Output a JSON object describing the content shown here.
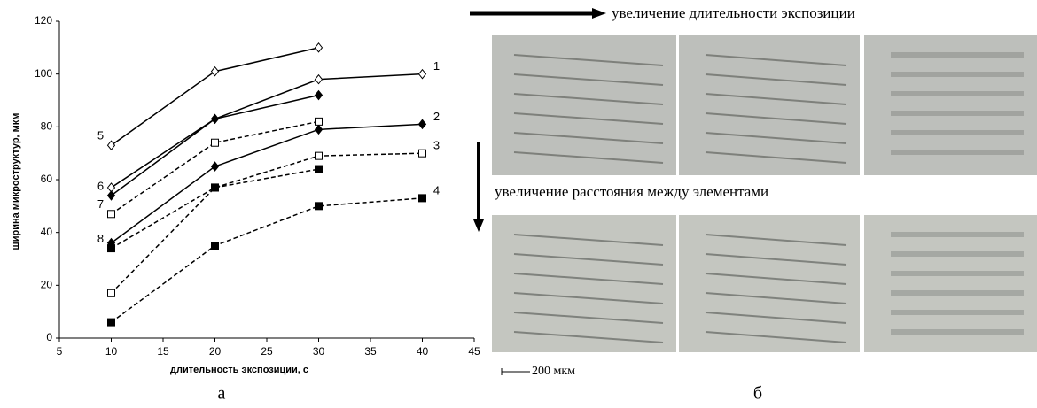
{
  "chart_data": {
    "type": "line",
    "x_label": "длительность экспозиции, с",
    "y_label": "ширина микроструктур, мкм",
    "x": [
      10,
      20,
      30,
      40
    ],
    "xlim": [
      5,
      45
    ],
    "xticks": [
      5,
      10,
      15,
      20,
      25,
      30,
      35,
      40,
      45
    ],
    "ylim": [
      0,
      120
    ],
    "yticks": [
      0,
      20,
      40,
      60,
      80,
      100,
      120
    ],
    "series": [
      {
        "name": "1",
        "color": "#000000",
        "marker": "diamond-open",
        "dashed": false,
        "values": [
          57,
          83,
          98,
          100
        ]
      },
      {
        "name": "2",
        "color": "#000000",
        "marker": "diamond",
        "dashed": false,
        "values": [
          36,
          65,
          79,
          81
        ]
      },
      {
        "name": "3",
        "color": "#000000",
        "marker": "square-open",
        "dashed": true,
        "values": [
          17,
          57,
          69,
          70
        ]
      },
      {
        "name": "4",
        "color": "#000000",
        "marker": "square",
        "dashed": true,
        "values": [
          6,
          35,
          50,
          53
        ]
      },
      {
        "name": "5",
        "color": "#000000",
        "marker": "diamond-open",
        "dashed": false,
        "values": [
          73,
          101,
          110,
          null
        ]
      },
      {
        "name": "6",
        "color": "#000000",
        "marker": "diamond",
        "dashed": false,
        "values": [
          54,
          83,
          92,
          null
        ]
      },
      {
        "name": "7",
        "color": "#000000",
        "marker": "square-open",
        "dashed": true,
        "values": [
          47,
          74,
          82,
          null
        ]
      },
      {
        "name": "8",
        "color": "#000000",
        "marker": "square",
        "dashed": true,
        "values": [
          34,
          57,
          64,
          null
        ]
      }
    ]
  },
  "figure": {
    "arrow_right": "увеличение длительности экспозиции",
    "arrow_down": "увеличение расстояния между элементами",
    "scale_bar": "200 мкм",
    "panel_a": "а",
    "panel_b": "б"
  }
}
